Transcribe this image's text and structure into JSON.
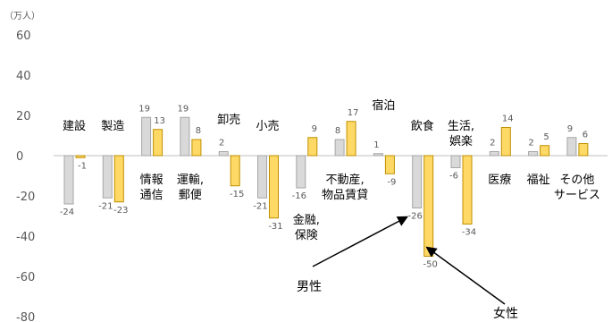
{
  "chart_data": {
    "type": "bar",
    "title": "",
    "unit_label": "（万人）",
    "y_ticks": [
      "60",
      "40",
      "20",
      "0",
      "-20",
      "-40",
      "-60",
      "-80"
    ],
    "ylim": [
      -80,
      60
    ],
    "categories": [
      [
        "建設"
      ],
      [
        "製造"
      ],
      [
        "情報",
        "通信"
      ],
      [
        "運輸,",
        "郵便"
      ],
      [
        "卸売"
      ],
      [
        "小売"
      ],
      [
        "金融,",
        "保険"
      ],
      [
        "不動産,",
        "物品賃貸"
      ],
      [
        "宿泊"
      ],
      [
        "飲食"
      ],
      [
        "生活,",
        "娯楽"
      ],
      [
        "医療"
      ],
      [
        "福祉"
      ],
      [
        "その他",
        "サービス"
      ]
    ],
    "series": [
      {
        "name": "男性",
        "color": "#d9d9d9",
        "stroke": "#a6a6a6",
        "values": [
          -24,
          -21,
          19,
          19,
          2,
          -21,
          -16,
          8,
          1,
          -26,
          -6,
          2,
          2,
          9
        ]
      },
      {
        "name": "女性",
        "color": "#ffd966",
        "stroke": "#bf9000",
        "values": [
          -1,
          -23,
          13,
          8,
          -15,
          -31,
          9,
          17,
          -9,
          -50,
          -34,
          14,
          5,
          6
        ]
      }
    ],
    "annotations": [
      {
        "text": "男性",
        "points_to": "男性 飲食"
      },
      {
        "text": "女性",
        "points_to": "女性 飲食"
      }
    ],
    "grid": false,
    "legend": "none"
  }
}
